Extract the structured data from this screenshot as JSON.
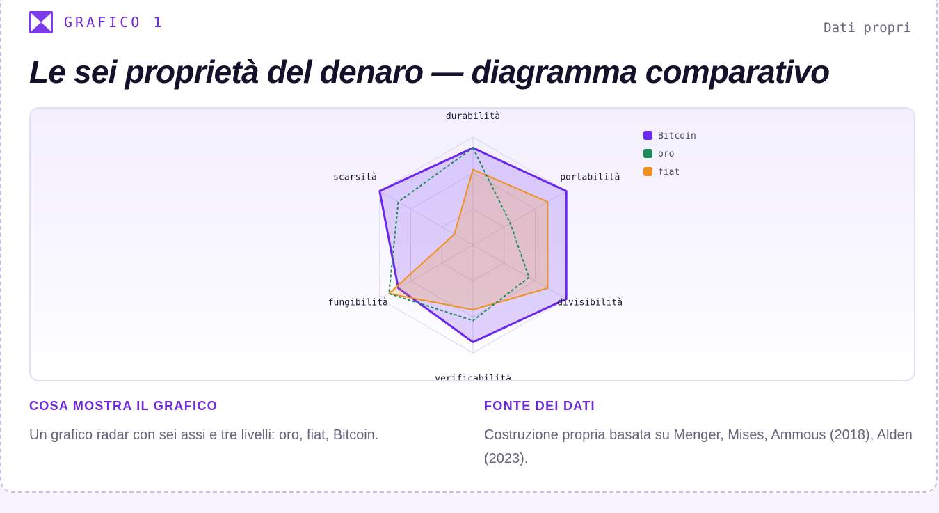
{
  "header": {
    "kicker": "GRAFICO 1",
    "source_tag": "Dati propri",
    "title": "Le sei proprietà del denaro — diagramma comparativo"
  },
  "colors": {
    "accent": "#6d28d9",
    "bitcoin": "#6d28f0",
    "oro": "#1e8a5a",
    "fiat": "#f0901e"
  },
  "chart_data": {
    "type": "radar",
    "title": "",
    "axes": [
      "durabilità",
      "portabilità",
      "divisibilità",
      "verificabilità",
      "fungibilità",
      "scarsità"
    ],
    "levels": 3,
    "max": 10,
    "legend_position": "top-right",
    "series": [
      {
        "name": "Bitcoin",
        "values": [
          9,
          10,
          10,
          9,
          8,
          10
        ],
        "color": "#6d28f0",
        "style": "solid-fill"
      },
      {
        "name": "oro",
        "values": [
          9,
          4,
          6,
          7,
          9,
          8
        ],
        "color": "#1e8a5a",
        "style": "dashed"
      },
      {
        "name": "fiat",
        "values": [
          7,
          8,
          8,
          6,
          9,
          2
        ],
        "color": "#f0901e",
        "style": "solid-fill"
      }
    ]
  },
  "notes": {
    "left_heading": "COSA MOSTRA IL GRAFICO",
    "left_text": "Un grafico radar con sei assi e tre livelli: oro, fiat, Bitcoin.",
    "right_heading": "FONTE DEI DATI",
    "right_text": "Costruzione propria basata su Menger, Mises, Ammous (2018), Alden (2023)."
  }
}
